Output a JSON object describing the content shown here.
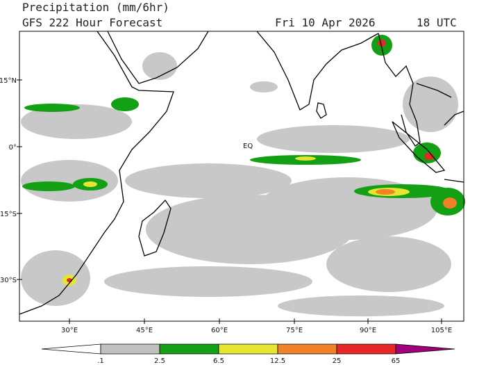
{
  "header": {
    "title": "Precipitation (mm/6hr)",
    "subtitle": "GFS 222 Hour Forecast",
    "date": "Fri 10 Apr 2026",
    "time": "18 UTC"
  },
  "map": {
    "lat_labels": [
      "15°N",
      "0°",
      "15°S",
      "30°S"
    ],
    "lon_labels": [
      "30°E",
      "45°E",
      "60°E",
      "75°E",
      "90°E",
      "105°E"
    ],
    "eq_label": "EQ"
  },
  "colorbar": {
    "labels": [
      ".1",
      "2.5",
      "6.5",
      "12.5",
      "25",
      "65"
    ],
    "colors": [
      "#ffffff",
      "#c0c0c0",
      "#14a014",
      "#e6e632",
      "#f08228",
      "#e62828",
      "#a0007a"
    ]
  }
}
